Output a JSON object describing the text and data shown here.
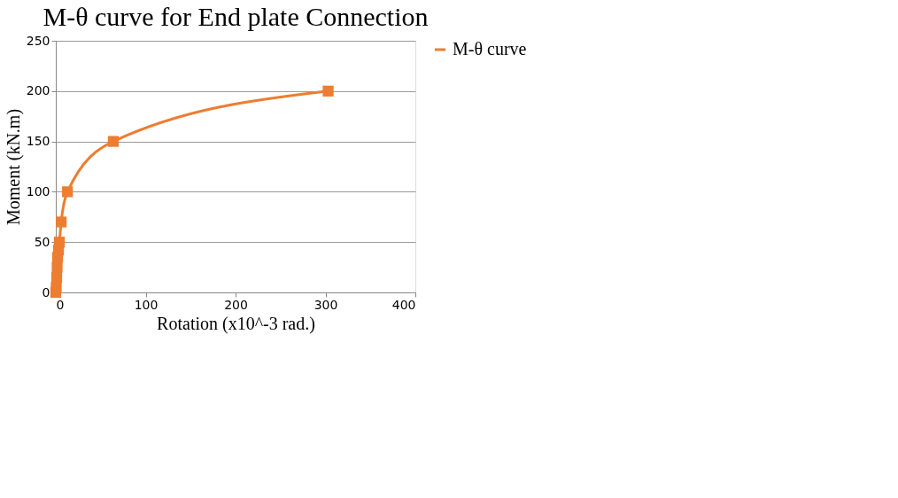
{
  "chart_data": {
    "type": "line",
    "title": "M-θ curve for End plate Connection",
    "xlabel": "Rotation (x10^-3 rad.)",
    "ylabel": "Moment (kN.m)",
    "series": [
      {
        "name": "M-θ curve",
        "color": "#ed7d31",
        "x": [
          0,
          0.5,
          1,
          1.5,
          2,
          3,
          4,
          6,
          13,
          64,
          303
        ],
        "values": [
          0,
          5,
          15,
          25,
          35,
          42,
          50,
          70,
          100,
          150,
          200
        ]
      }
    ],
    "xlim": [
      0,
      400
    ],
    "xticks": [
      0,
      100,
      200,
      300,
      400
    ],
    "ylim": [
      0,
      250
    ],
    "yticks": [
      0,
      50,
      100,
      150,
      200,
      250
    ],
    "grid": "y",
    "legend": "right",
    "marker": "square",
    "line_style": "solid"
  }
}
